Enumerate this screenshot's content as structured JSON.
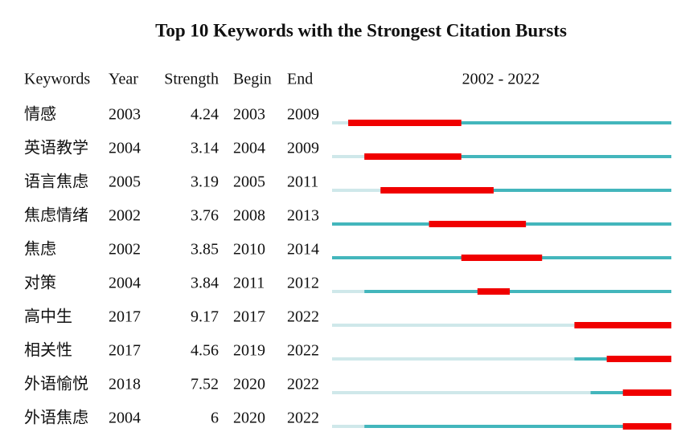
{
  "chart_data": {
    "type": "burst",
    "title": "Top 10 Keywords with the Strongest Citation Bursts",
    "columns": [
      "Keywords",
      "Year",
      "Strength",
      "Begin",
      "End"
    ],
    "timeline_label": "2002 - 2022",
    "xlim": [
      2002,
      2022
    ],
    "colors": {
      "before": "#cfe8ea",
      "active": "#43b6bc",
      "burst": "#f00000"
    },
    "rows": [
      {
        "keyword": "情感",
        "year": 2003,
        "strength": 4.24,
        "begin": 2003,
        "end": 2009
      },
      {
        "keyword": "英语教学",
        "year": 2004,
        "strength": 3.14,
        "begin": 2004,
        "end": 2009
      },
      {
        "keyword": "语言焦虑",
        "year": 2005,
        "strength": 3.19,
        "begin": 2005,
        "end": 2011
      },
      {
        "keyword": "焦虑情绪",
        "year": 2002,
        "strength": 3.76,
        "begin": 2008,
        "end": 2013
      },
      {
        "keyword": "焦虑",
        "year": 2002,
        "strength": 3.85,
        "begin": 2010,
        "end": 2014
      },
      {
        "keyword": "对策",
        "year": 2004,
        "strength": 3.84,
        "begin": 2011,
        "end": 2012
      },
      {
        "keyword": "高中生",
        "year": 2017,
        "strength": 9.17,
        "begin": 2017,
        "end": 2022
      },
      {
        "keyword": "相关性",
        "year": 2017,
        "strength": 4.56,
        "begin": 2019,
        "end": 2022
      },
      {
        "keyword": "外语愉悦",
        "year": 2018,
        "strength": 7.52,
        "begin": 2020,
        "end": 2022
      },
      {
        "keyword": "外语焦虑",
        "year": 2004,
        "strength": 6,
        "begin": 2020,
        "end": 2022
      }
    ]
  }
}
